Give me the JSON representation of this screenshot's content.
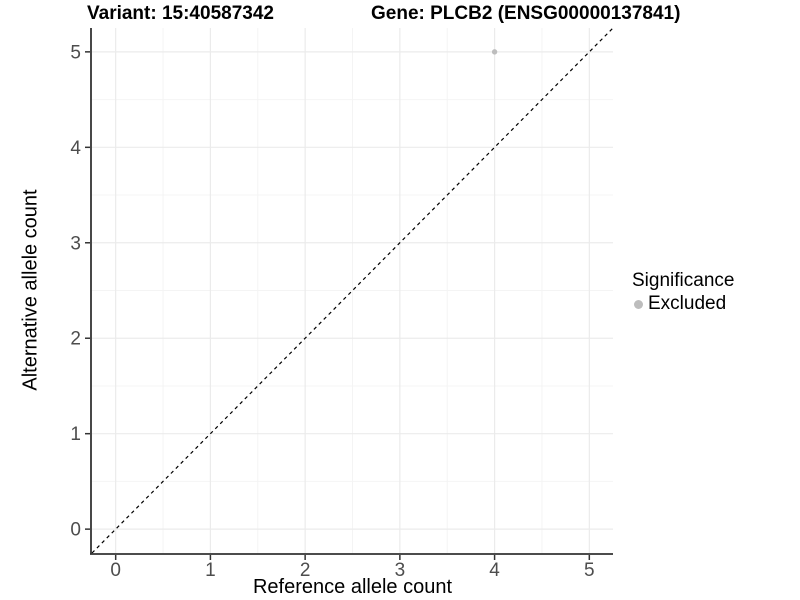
{
  "colors": {
    "background": "#ffffff",
    "grid_major": "#ebebeb",
    "grid_minor": "#f4f4f4",
    "axis_line": "#333333",
    "tick_mark": "#333333",
    "tick_label": "#4d4d4d",
    "point": "#bdbdbd",
    "reference_line": "#000000"
  },
  "chart_data": {
    "type": "scatter",
    "title_left": "Variant: 15:40587342",
    "title_right": "Gene: PLCB2 (ENSG00000137841)",
    "xlabel": "Reference allele count",
    "ylabel": "Alternative allele count",
    "xlim": [
      -0.25,
      5.25
    ],
    "ylim": [
      -0.25,
      5.25
    ],
    "xticks": [
      0,
      1,
      2,
      3,
      4,
      5
    ],
    "yticks": [
      0,
      1,
      2,
      3,
      4,
      5
    ],
    "minor_gridlines_x": [
      0.5,
      1.5,
      2.5,
      3.5,
      4.5
    ],
    "minor_gridlines_y": [
      0.5,
      1.5,
      2.5,
      3.5,
      4.5
    ],
    "grid": true,
    "series": [
      {
        "name": "Excluded",
        "color": "#bdbdbd",
        "point_radius": 2.7,
        "points": [
          {
            "x": 4,
            "y": 5
          }
        ]
      }
    ],
    "reference_line": {
      "slope": 1,
      "intercept": 0,
      "style": "dashed",
      "color": "#000000"
    },
    "legend": {
      "title": "Significance",
      "position": "right",
      "entries": [
        {
          "label": "Excluded",
          "color": "#bdbdbd"
        }
      ]
    }
  }
}
